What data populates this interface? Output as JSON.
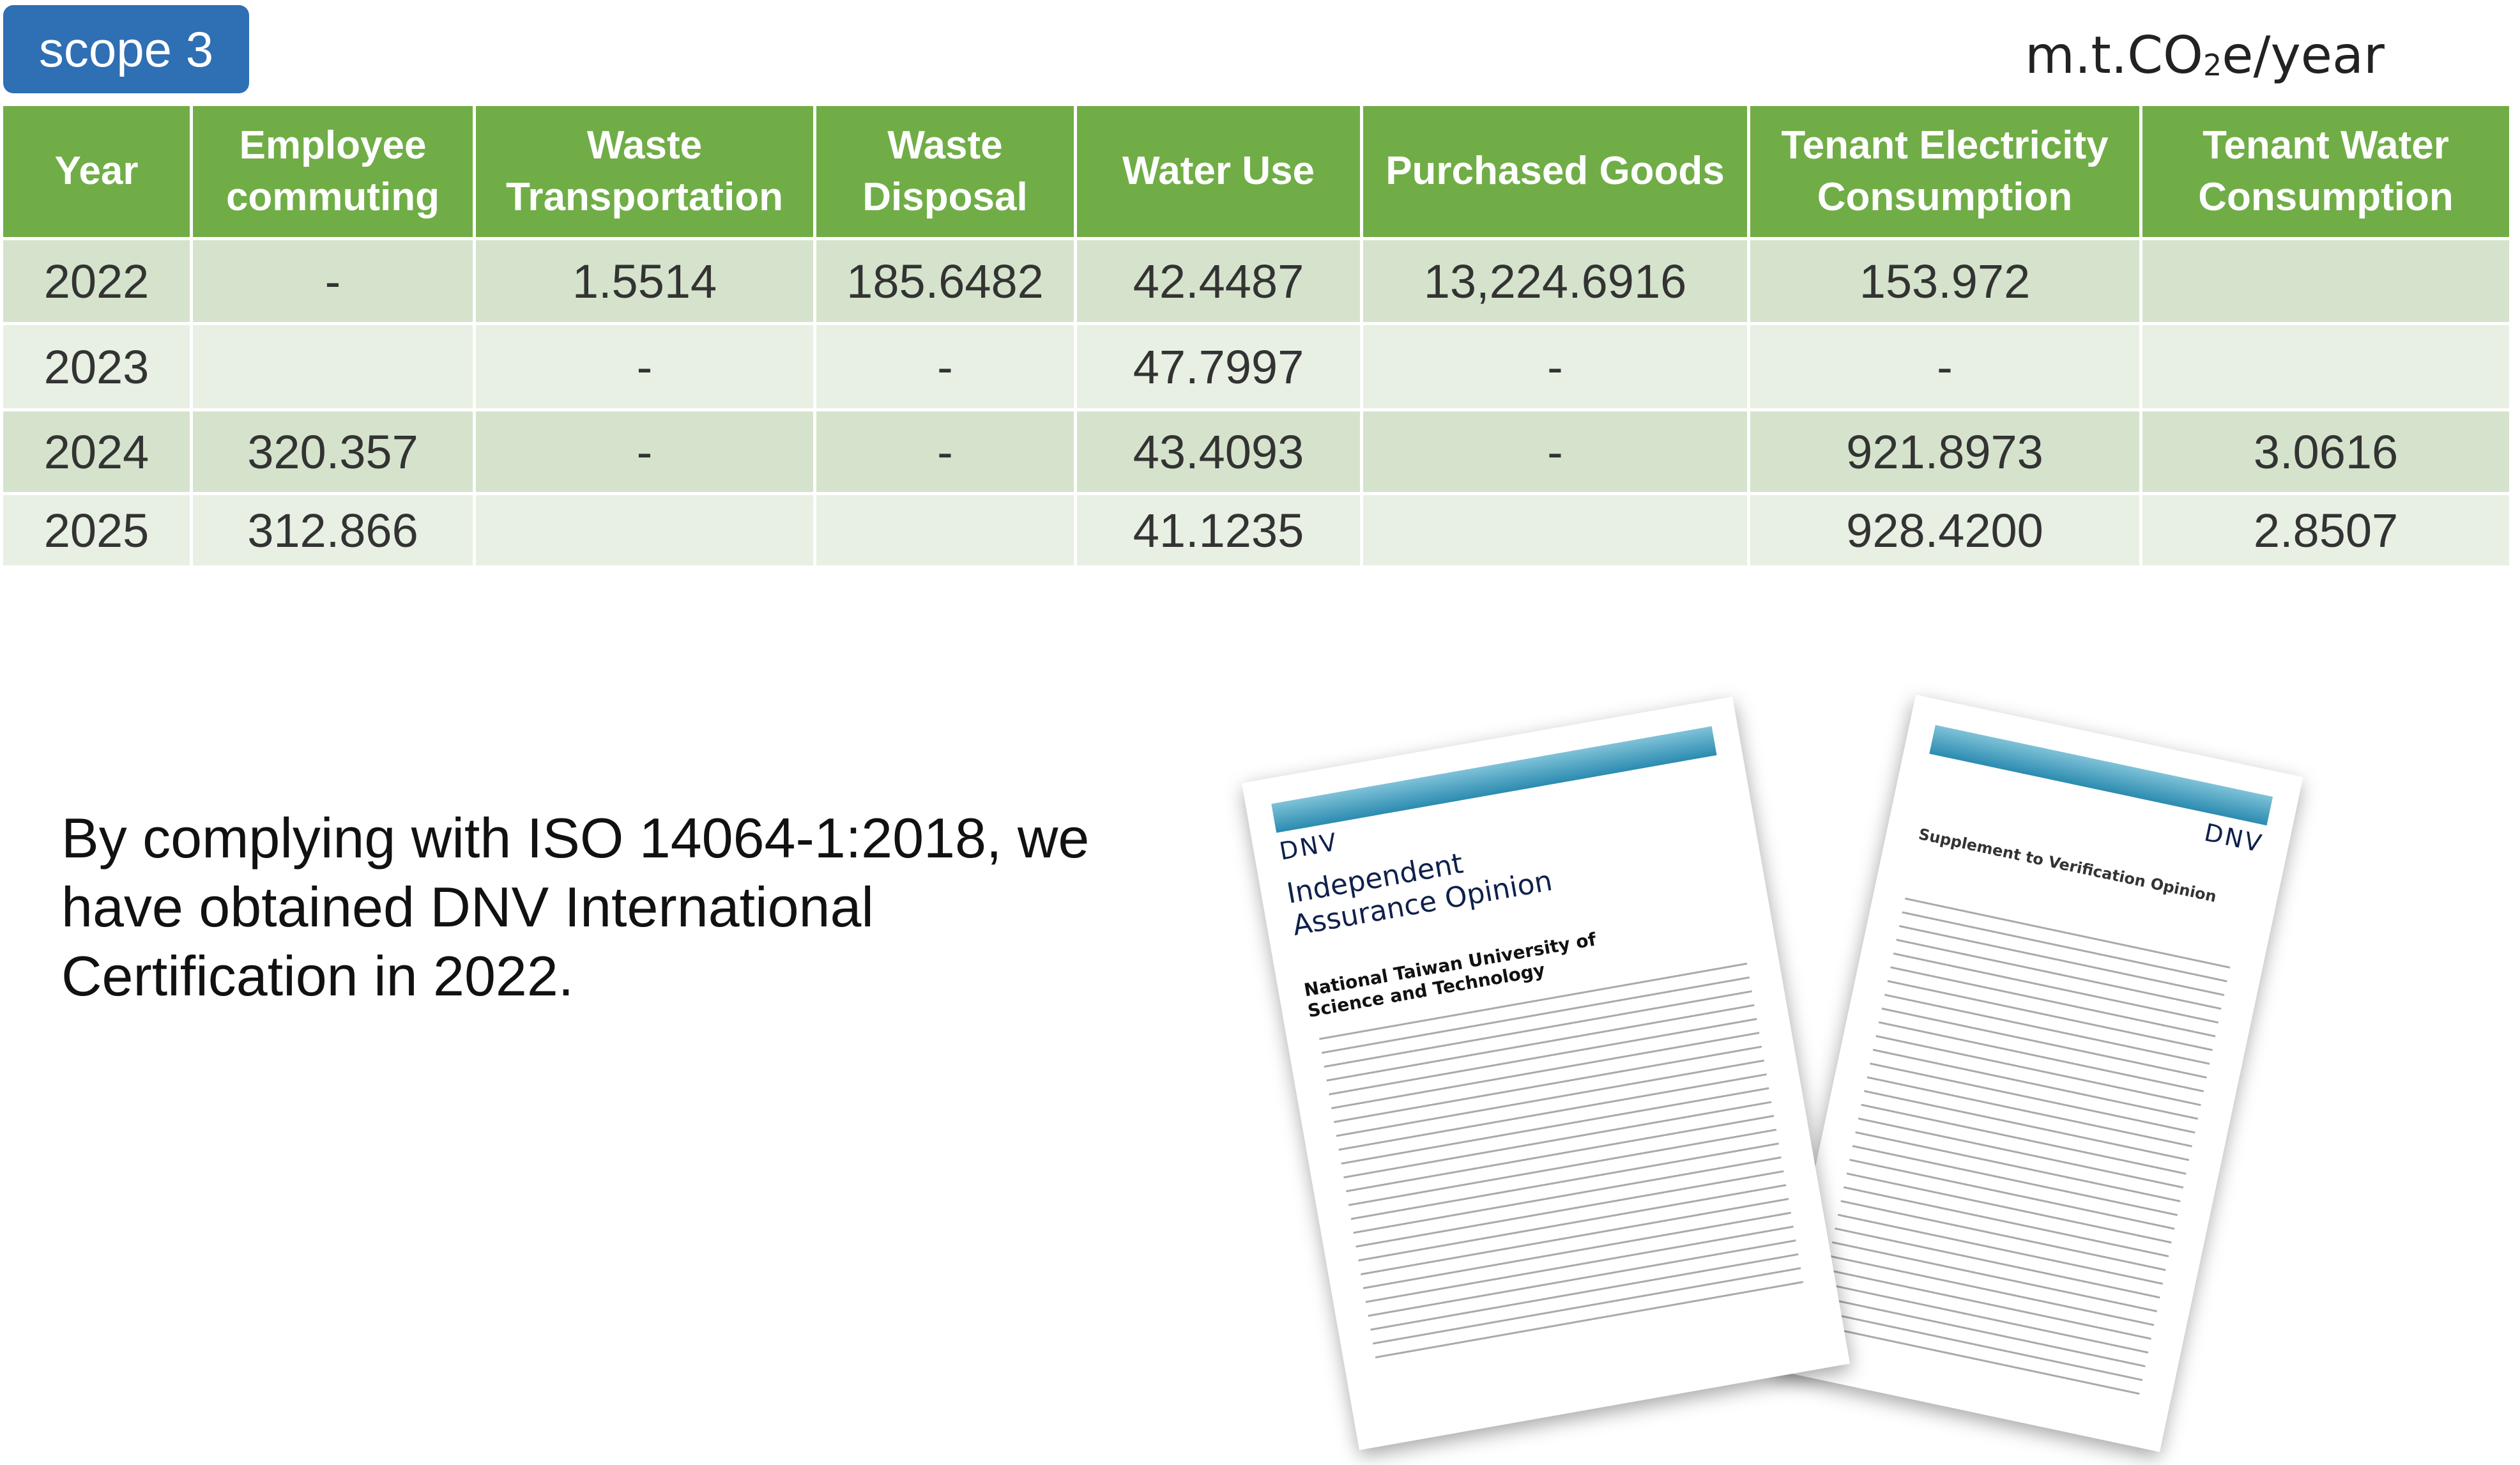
{
  "header": {
    "badge": "scope 3",
    "unit": {
      "main": "m.t.CO",
      "sub": "2",
      "rest": "e/year"
    }
  },
  "table": {
    "columns": [
      "Year",
      "Employee commuting",
      "Waste Transportation",
      "Waste Disposal",
      "Water Use",
      "Purchased Goods",
      "Tenant Electricity Consumption",
      "Tenant Water Consumption"
    ],
    "rows": [
      [
        "2022",
        "-",
        "1.5514",
        "185.6482",
        "42.4487",
        "13,224.6916",
        "153.972",
        null
      ],
      [
        "2023",
        null,
        "-",
        "-",
        "47.7997",
        "-",
        "-",
        null
      ],
      [
        "2024",
        "320.357",
        "-",
        "-",
        "43.4093",
        "-",
        "921.8973",
        "3.0616"
      ],
      [
        "2025",
        "312.866",
        null,
        null,
        "41.1235",
        null,
        "928.4200",
        "2.8507"
      ]
    ]
  },
  "paragraph": {
    "lines": [
      "By complying with ISO 14064-1:2018, we",
      "have obtained DNV International",
      "Certification in 2022."
    ]
  },
  "documents": [
    {
      "logo": "DNV",
      "title": "Independent Assurance Opinion",
      "subtitle": "National Taiwan University of Science and Technology"
    },
    {
      "logo": "DNV",
      "title": "Supplement to Verification Opinion"
    }
  ]
}
